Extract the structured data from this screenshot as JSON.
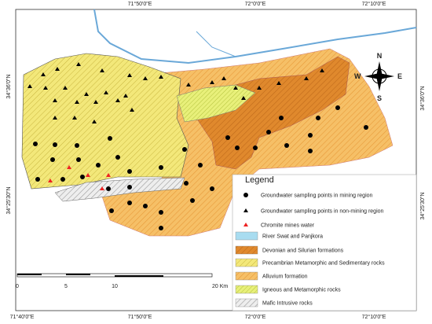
{
  "map": {
    "top_labels": [
      "71°50'0\"E",
      "72°0'0\"E",
      "72°10'0\"E"
    ],
    "bottom_labels": [
      "71°40'0\"E",
      "71°50'0\"E",
      "72°0'0\"E",
      "72°10'0\"E"
    ],
    "left_labels": [
      "34°36'0\"N",
      "34°25'30\"N"
    ],
    "right_labels": [
      "34°36'0\"N",
      "34°25'30\"N"
    ],
    "compass": {
      "n": "N",
      "s": "S",
      "e": "E",
      "w": "W"
    },
    "scale": [
      "0",
      "5",
      "10",
      "20 Km"
    ],
    "legend": {
      "title": "Legend",
      "items": [
        "Groundwater sampling points in mining region",
        "Groundwater sampling points in non-mining region",
        "Chromite mines water",
        "River Swat and Panjkora",
        "Devonian and Silurian formations",
        "Precambrian Metamorphic and Sedimentary rocks",
        "Alluvium formation",
        "Igneous and Metamorphic rocks",
        "Mafic Intrusive rocks"
      ]
    }
  }
}
